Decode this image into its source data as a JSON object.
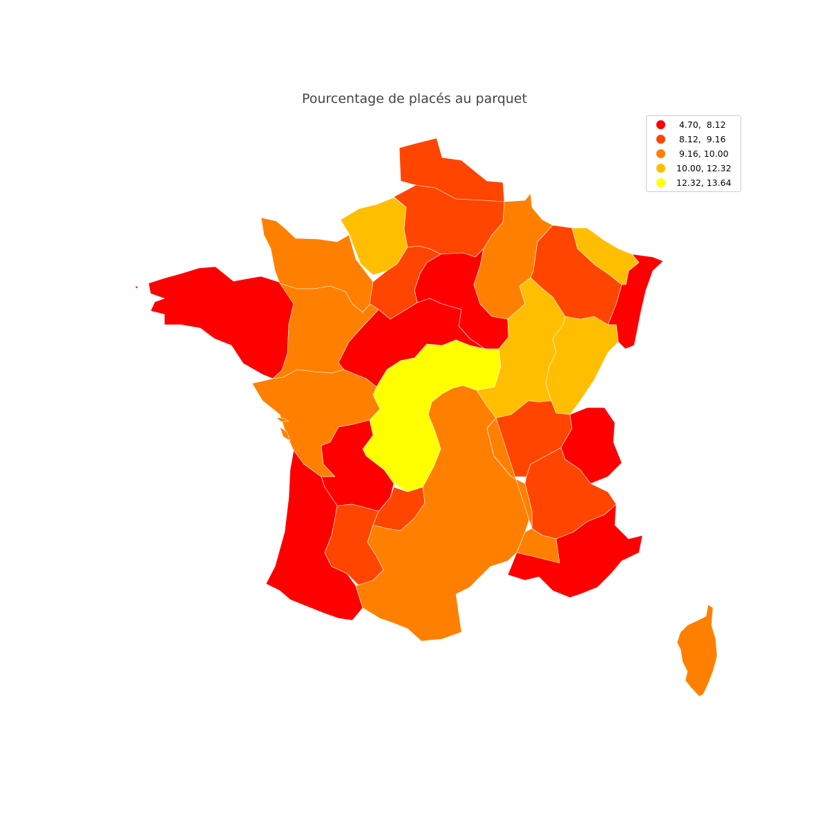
{
  "title": "Pourcentage de placés au parquet",
  "legend": {
    "placement": "top-right",
    "items": [
      {
        "label": " 4.70,  8.12",
        "color": "#ff0000"
      },
      {
        "label": " 8.12,  9.16",
        "color": "#ff4500"
      },
      {
        "label": " 9.16, 10.00",
        "color": "#ff8000"
      },
      {
        "label": "10.00, 12.32",
        "color": "#ffbf00"
      },
      {
        "label": "12.32, 13.64",
        "color": "#ffff00"
      }
    ]
  },
  "chart_data": {
    "type": "choropleth",
    "title": "Pourcentage de placés au parquet",
    "classes": [
      {
        "range": [
          4.7,
          8.12
        ],
        "color": "#ff0000"
      },
      {
        "range": [
          8.12,
          9.16
        ],
        "color": "#ff4500"
      },
      {
        "range": [
          9.16,
          10.0
        ],
        "color": "#ff8000"
      },
      {
        "range": [
          10.0,
          12.32
        ],
        "color": "#ffbf00"
      },
      {
        "range": [
          12.32,
          13.64
        ],
        "color": "#ffff00"
      }
    ],
    "regions": [
      {
        "id": "bretagne",
        "class": 0
      },
      {
        "id": "normandie-ouest",
        "class": 2
      },
      {
        "id": "normandie-est",
        "class": 3
      },
      {
        "id": "nord",
        "class": 1
      },
      {
        "id": "picardie",
        "class": 1
      },
      {
        "id": "ile-de-france-ouest",
        "class": 1
      },
      {
        "id": "ile-de-france-centre",
        "class": 0
      },
      {
        "id": "champagne",
        "class": 2
      },
      {
        "id": "lorraine",
        "class": 1
      },
      {
        "id": "alsace-nord",
        "class": 3
      },
      {
        "id": "alsace",
        "class": 0
      },
      {
        "id": "pays-de-la-loire",
        "class": 2
      },
      {
        "id": "centre",
        "class": 0
      },
      {
        "id": "bourgogne-ouest",
        "class": 4
      },
      {
        "id": "bourgogne-est",
        "class": 3
      },
      {
        "id": "franche-comte",
        "class": 3
      },
      {
        "id": "poitou-charentes",
        "class": 2
      },
      {
        "id": "limousin",
        "class": 4
      },
      {
        "id": "auvergne",
        "class": 2
      },
      {
        "id": "lyonnais",
        "class": 1
      },
      {
        "id": "savoie",
        "class": 0
      },
      {
        "id": "dauphine",
        "class": 1
      },
      {
        "id": "perigord",
        "class": 0
      },
      {
        "id": "gironde-landes",
        "class": 0
      },
      {
        "id": "quercy",
        "class": 1
      },
      {
        "id": "lot-et-garonne",
        "class": 1
      },
      {
        "id": "midi-pyrenees",
        "class": 2
      },
      {
        "id": "languedoc",
        "class": 2
      },
      {
        "id": "provence",
        "class": 0
      },
      {
        "id": "corse",
        "class": 2
      }
    ]
  }
}
